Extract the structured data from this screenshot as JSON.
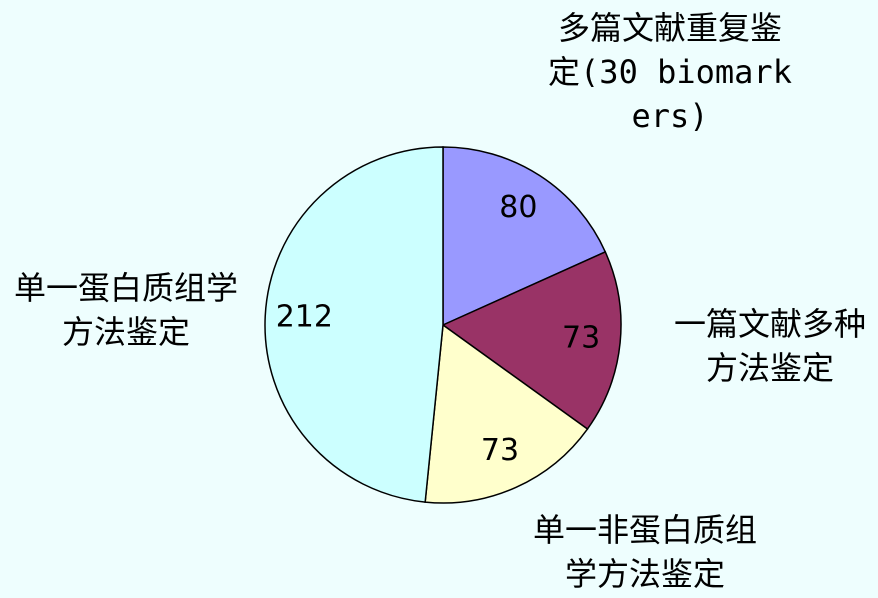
{
  "chart_data": {
    "type": "pie",
    "categories": [
      "多篇文献重复鉴定(30 biomarkers)",
      "一篇文献多种方法鉴定",
      "单一非蛋白质组学方法鉴定",
      "单一蛋白质组学方法鉴定"
    ],
    "values": [
      80,
      73,
      73,
      212
    ],
    "colors": [
      "#9999ff",
      "#993366",
      "#ffffcc",
      "#ccffff"
    ]
  }
}
